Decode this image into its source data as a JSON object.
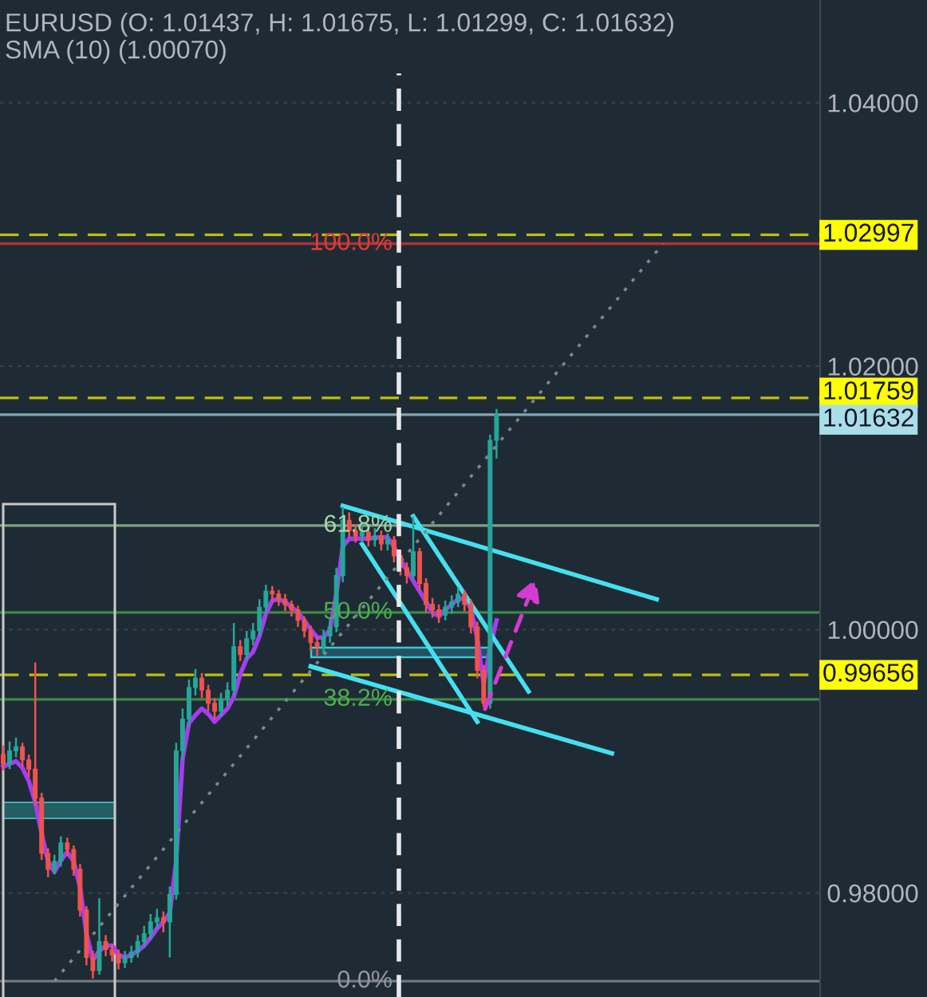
{
  "chart_data": {
    "type": "candlestick",
    "title": "EURUSD (O: 1.01437, H: 1.01675, L: 1.01299, C: 1.01632)",
    "subtitle": "SMA (10) (1.00070)",
    "categories": [
      null,
      null,
      null,
      null,
      null,
      null,
      null,
      null,
      null,
      null,
      null,
      null,
      null,
      null,
      null,
      null,
      null,
      null,
      null,
      null,
      null,
      null,
      null,
      null,
      null,
      null,
      null,
      null,
      null,
      null,
      null,
      null,
      null,
      null,
      null,
      null,
      null,
      null,
      null,
      null,
      null,
      null,
      null,
      null,
      null,
      null,
      null,
      null,
      null,
      null,
      null,
      null,
      null,
      null,
      null,
      null,
      null,
      null,
      null,
      null,
      null,
      null,
      null,
      null,
      null,
      null,
      null,
      null,
      null,
      null,
      null,
      null,
      null,
      null,
      null,
      null,
      null,
      null,
      null,
      null,
      null,
      null,
      null,
      null,
      null,
      null,
      null,
      null,
      null,
      null,
      null,
      null,
      null,
      null,
      null,
      null,
      null,
      null,
      null,
      null,
      null,
      null,
      null,
      null,
      null,
      null,
      null,
      null,
      null,
      null,
      null,
      null,
      null,
      null,
      null,
      null,
      null,
      null,
      null,
      null,
      null,
      null,
      null,
      null,
      null,
      null,
      null,
      null
    ],
    "ohlc": [
      [
        0.9905,
        0.9912,
        0.9893,
        0.9898
      ],
      [
        0.9898,
        0.9915,
        0.9894,
        0.9908
      ],
      [
        0.9908,
        0.9918,
        0.9903,
        0.9911
      ],
      [
        0.9911,
        0.9914,
        0.9896,
        0.9901
      ],
      [
        0.9901,
        0.9905,
        0.9888,
        0.9894
      ],
      [
        0.9894,
        0.9975,
        0.9866,
        0.9872
      ],
      [
        0.9872,
        0.9876,
        0.9825,
        0.983
      ],
      [
        0.983,
        0.9834,
        0.9812,
        0.9818
      ],
      [
        0.9818,
        0.9829,
        0.9814,
        0.9824
      ],
      [
        0.9824,
        0.9843,
        0.982,
        0.9838
      ],
      [
        0.9838,
        0.9842,
        0.9828,
        0.9833
      ],
      [
        0.9833,
        0.9836,
        0.9813,
        0.9818
      ],
      [
        0.9818,
        0.9822,
        0.9782,
        0.9787
      ],
      [
        0.9787,
        0.979,
        0.9745,
        0.9751
      ],
      [
        0.9751,
        0.9756,
        0.9735,
        0.9741
      ],
      [
        0.9741,
        0.9796,
        0.9738,
        0.9763
      ],
      [
        0.9763,
        0.9768,
        0.9752,
        0.9757
      ],
      [
        0.9757,
        0.9761,
        0.9748,
        0.9753
      ],
      [
        0.9753,
        0.9757,
        0.9742,
        0.9747
      ],
      [
        0.9747,
        0.9756,
        0.9743,
        0.9751
      ],
      [
        0.9751,
        0.976,
        0.9747,
        0.9755
      ],
      [
        0.9755,
        0.9768,
        0.9751,
        0.9763
      ],
      [
        0.9763,
        0.9775,
        0.9759,
        0.9769
      ],
      [
        0.9769,
        0.9784,
        0.9765,
        0.9778
      ],
      [
        0.9778,
        0.9788,
        0.9773,
        0.9781
      ],
      [
        0.9781,
        0.9786,
        0.977,
        0.9778
      ],
      [
        0.9778,
        0.9805,
        0.9751,
        0.9799
      ],
      [
        0.9799,
        0.9914,
        0.9795,
        0.9908
      ],
      [
        0.9908,
        0.994,
        0.9901,
        0.9932
      ],
      [
        0.9932,
        0.9962,
        0.9926,
        0.9956
      ],
      [
        0.9956,
        0.997,
        0.995,
        0.9963
      ],
      [
        0.9963,
        0.9967,
        0.9948,
        0.9954
      ],
      [
        0.9954,
        0.9958,
        0.9938,
        0.9944
      ],
      [
        0.9944,
        0.9948,
        0.9932,
        0.9938
      ],
      [
        0.9938,
        0.9952,
        0.9934,
        0.9947
      ],
      [
        0.9947,
        0.996,
        0.9942,
        0.9954
      ],
      [
        0.9954,
        1.0005,
        0.995,
        0.9987
      ],
      [
        0.9987,
        0.9992,
        0.9976,
        0.9981
      ],
      [
        0.9981,
        0.9999,
        0.9977,
        0.9993
      ],
      [
        0.9993,
        1.0005,
        0.9988,
        0.9999
      ],
      [
        0.9999,
        1.0023,
        0.9995,
        1.0017
      ],
      [
        1.0017,
        1.0034,
        1.0012,
        1.0029
      ],
      [
        1.0029,
        1.0033,
        1.0021,
        1.0027
      ],
      [
        1.0027,
        1.003,
        1.0018,
        1.0023
      ],
      [
        1.0023,
        1.0027,
        1.0014,
        1.0019
      ],
      [
        1.0019,
        1.0022,
        1.001,
        1.0015
      ],
      [
        1.0015,
        1.0018,
        1.0002,
        1.0007
      ],
      [
        1.0007,
        1.001,
        0.9994,
        0.9999
      ],
      [
        0.9999,
        1.0003,
        0.9984,
        0.999
      ],
      [
        0.999,
        0.9994,
        0.998,
        0.9987
      ],
      [
        0.9987,
        1.0,
        0.9982,
        0.9995
      ],
      [
        0.9995,
        1.0008,
        0.999,
        1.0002
      ],
      [
        1.0002,
        1.0047,
        0.9998,
        1.0041
      ],
      [
        1.0041,
        1.0093,
        1.0036,
        1.0083
      ],
      [
        1.0083,
        1.0089,
        1.007,
        1.0075
      ],
      [
        1.0075,
        1.008,
        1.0066,
        1.0071
      ],
      [
        1.0071,
        1.008,
        1.0066,
        1.0074
      ],
      [
        1.0074,
        1.0078,
        1.0063,
        1.0068
      ],
      [
        1.0068,
        1.0077,
        1.0063,
        1.0071
      ],
      [
        1.0071,
        1.0075,
        1.006,
        1.0065
      ],
      [
        1.0065,
        1.0073,
        1.006,
        1.0068
      ],
      [
        1.0068,
        1.0071,
        1.0051,
        1.0056
      ],
      [
        1.0056,
        1.006,
        1.0041,
        1.0047
      ],
      [
        1.0047,
        1.0051,
        1.0035,
        1.0041
      ],
      [
        1.0041,
        1.0086,
        1.0038,
        1.0059
      ],
      [
        1.0059,
        1.0062,
        1.003,
        1.0035
      ],
      [
        1.0035,
        1.0039,
        1.0013,
        1.0019
      ],
      [
        1.0019,
        1.0024,
        1.0009,
        1.0015
      ],
      [
        1.0015,
        1.0019,
        1.0005,
        1.0011
      ],
      [
        1.0011,
        1.0022,
        1.0007,
        1.0017
      ],
      [
        1.0017,
        1.0026,
        1.0012,
        1.0021
      ],
      [
        1.0021,
        1.0032,
        1.0017,
        1.0027
      ],
      [
        1.0027,
        1.003,
        1.0014,
        1.0019
      ],
      [
        1.0019,
        1.0023,
        0.9997,
        1.0002
      ],
      [
        1.0002,
        1.0006,
        0.9963,
        0.9969
      ],
      [
        0.9969,
        0.9973,
        0.9941,
        0.9944
      ],
      [
        0.9944,
        1.0148,
        0.994,
        1.01437
      ],
      [
        1.01437,
        1.01675,
        1.01299,
        1.01632
      ],
      null,
      null,
      null,
      null,
      null,
      null,
      null,
      null,
      null,
      null,
      null,
      null,
      null,
      null,
      null,
      null,
      null,
      null,
      null,
      null,
      null,
      null,
      null,
      null,
      null,
      null,
      null,
      null,
      null,
      null,
      null,
      null,
      null,
      null,
      null,
      null,
      null,
      null,
      null,
      null,
      null,
      null,
      null,
      null,
      null,
      null,
      null,
      null,
      null,
      null
    ],
    "series": [
      {
        "type": "line",
        "color": "#a63cf0",
        "values": [
          0.9896,
          0.9898,
          0.99,
          0.9895,
          0.9885,
          0.9869,
          0.9845,
          0.9824,
          0.9816,
          0.9825,
          0.9831,
          0.9824,
          0.9804,
          0.9769,
          0.9749,
          0.9756,
          0.976,
          0.976,
          0.9753,
          0.9751,
          0.9753,
          0.9756,
          0.976,
          0.9766,
          0.9773,
          0.9778,
          0.9785,
          0.9824,
          0.9902,
          0.9929,
          0.9935,
          0.994,
          0.9936,
          0.993,
          0.9935,
          0.994,
          0.9949,
          0.9966,
          0.9978,
          0.9983,
          0.9995,
          1.0012,
          1.0022,
          1.0023,
          1.0021,
          1.0017,
          1.0013,
          1.0007,
          1.0,
          0.9994,
          0.9994,
          1.0,
          1.0027,
          1.0063,
          1.0069,
          1.0069,
          1.0069,
          1.0069,
          1.007,
          1.007,
          1.007,
          1.0063,
          1.0053,
          1.0045,
          1.0037,
          1.0029,
          1.0021,
          1.0013,
          1.001,
          1.0015,
          1.0019,
          1.0023,
          1.0024,
          1.0016,
          0.9993,
          0.9959,
          0.9987,
          1.0007,
          null,
          null,
          null,
          null,
          null,
          null,
          null,
          null,
          null,
          null,
          null,
          null,
          null,
          null,
          null,
          null,
          null,
          null,
          null,
          null,
          null,
          null,
          null,
          null,
          null,
          null,
          null,
          null,
          null,
          null,
          null,
          null,
          null,
          null,
          null,
          null,
          null,
          null,
          null,
          null,
          null,
          null,
          null,
          null,
          null,
          null,
          null,
          null,
          null,
          null
        ]
      },
      {
        "type": "line",
        "color": "#45e0f0",
        "values": [
          null,
          null,
          null,
          null,
          null,
          null,
          null,
          null,
          null,
          null,
          null,
          null,
          null,
          null,
          null,
          null,
          null,
          null,
          null,
          null,
          null,
          null,
          null,
          null,
          null,
          null,
          null,
          null,
          null,
          null,
          null,
          null,
          null,
          null,
          null,
          null,
          null,
          null,
          null,
          null,
          null,
          null,
          null,
          null,
          null,
          null,
          null,
          null,
          null,
          null,
          null,
          null,
          null,
          1.0094,
          null,
          null,
          null,
          null,
          null,
          null,
          null,
          null,
          null,
          null,
          null,
          null,
          null,
          null,
          null,
          null,
          null,
          null,
          null,
          null,
          null,
          null,
          null,
          null,
          null,
          null,
          null,
          null,
          null,
          null,
          null,
          null,
          null,
          null,
          null,
          null,
          null,
          null,
          null,
          null,
          null,
          null,
          null,
          null,
          null,
          null,
          null,
          null,
          1.0023,
          null,
          null,
          null,
          null,
          null,
          null,
          null,
          null,
          null,
          null,
          null,
          null,
          null,
          null,
          null,
          null,
          null,
          null,
          null,
          null,
          null,
          null,
          null,
          null,
          null
        ]
      },
      {
        "type": "line",
        "color": "#45e0f0",
        "values": [
          null,
          null,
          null,
          null,
          null,
          null,
          null,
          null,
          null,
          null,
          null,
          null,
          null,
          null,
          null,
          null,
          null,
          null,
          null,
          null,
          null,
          null,
          null,
          null,
          null,
          null,
          null,
          null,
          null,
          null,
          null,
          null,
          null,
          null,
          null,
          null,
          null,
          null,
          null,
          null,
          null,
          null,
          null,
          null,
          null,
          null,
          null,
          null,
          0.9972,
          null,
          null,
          null,
          null,
          null,
          null,
          null,
          null,
          null,
          null,
          null,
          null,
          null,
          null,
          null,
          null,
          null,
          null,
          null,
          null,
          null,
          null,
          null,
          null,
          null,
          null,
          null,
          null,
          null,
          null,
          null,
          null,
          null,
          null,
          null,
          null,
          null,
          null,
          null,
          null,
          null,
          null,
          null,
          null,
          null,
          null,
          0.9906,
          null,
          null,
          null,
          null,
          null,
          null,
          null,
          null,
          null,
          null,
          null,
          null,
          null,
          null,
          null,
          null,
          null,
          null,
          null,
          null,
          null,
          null,
          null,
          null,
          null,
          null,
          null,
          null,
          null,
          null,
          null,
          null
        ]
      },
      {
        "type": "line",
        "color": "#45e0f0",
        "values": [
          null,
          null,
          null,
          null,
          null,
          null,
          null,
          null,
          null,
          null,
          null,
          null,
          null,
          null,
          null,
          null,
          null,
          null,
          null,
          null,
          null,
          null,
          null,
          null,
          null,
          null,
          null,
          null,
          null,
          null,
          null,
          null,
          null,
          null,
          null,
          null,
          null,
          null,
          null,
          null,
          null,
          null,
          null,
          null,
          null,
          null,
          null,
          null,
          null,
          null,
          null,
          null,
          null,
          null,
          null,
          null,
          1.0065,
          null,
          null,
          null,
          null,
          null,
          null,
          null,
          null,
          null,
          null,
          null,
          null,
          null,
          null,
          null,
          null,
          null,
          0.993,
          null,
          null,
          null,
          null,
          null,
          null,
          null,
          null,
          null,
          null,
          null,
          null,
          null,
          null,
          null,
          null,
          null,
          null,
          null,
          null,
          null,
          null,
          null,
          null,
          null,
          null,
          null,
          null,
          null,
          null,
          null,
          null,
          null,
          null,
          null,
          null,
          null,
          null,
          null,
          null,
          null,
          null,
          null,
          null,
          null,
          null,
          null,
          null,
          null,
          null,
          null,
          null,
          null
        ]
      },
      {
        "type": "line",
        "color": "#45e0f0",
        "values": [
          null,
          null,
          null,
          null,
          null,
          null,
          null,
          null,
          null,
          null,
          null,
          null,
          null,
          null,
          null,
          null,
          null,
          null,
          null,
          null,
          null,
          null,
          null,
          null,
          null,
          null,
          null,
          null,
          null,
          null,
          null,
          null,
          null,
          null,
          null,
          null,
          null,
          null,
          null,
          null,
          null,
          null,
          null,
          null,
          null,
          null,
          null,
          null,
          null,
          null,
          null,
          null,
          null,
          null,
          null,
          null,
          null,
          null,
          null,
          null,
          null,
          null,
          null,
          null,
          1.0086,
          null,
          null,
          null,
          null,
          null,
          null,
          null,
          null,
          null,
          null,
          null,
          null,
          null,
          null,
          null,
          null,
          null,
          0.9953,
          null,
          null,
          null,
          null,
          null,
          null,
          null,
          null,
          null,
          null,
          null,
          null,
          null,
          null,
          null,
          null,
          null,
          null,
          null,
          null,
          null,
          null,
          null,
          null,
          null,
          null,
          null,
          null,
          null,
          null,
          null,
          null,
          null,
          null,
          null,
          null,
          null,
          null,
          null,
          null,
          null,
          null,
          null,
          null,
          null
        ]
      },
      {
        "type": "line",
        "color": "#7b8792",
        "line_style": "dotted",
        "values": [
          null,
          null,
          null,
          null,
          null,
          null,
          null,
          null,
          0.9733,
          null,
          null,
          null,
          null,
          null,
          null,
          null,
          null,
          null,
          null,
          null,
          null,
          null,
          null,
          null,
          null,
          null,
          null,
          null,
          null,
          null,
          null,
          null,
          null,
          null,
          null,
          null,
          null,
          null,
          null,
          null,
          null,
          null,
          null,
          null,
          null,
          null,
          null,
          null,
          null,
          null,
          null,
          null,
          null,
          null,
          null,
          null,
          null,
          null,
          null,
          null,
          null,
          null,
          null,
          null,
          null,
          null,
          null,
          null,
          null,
          null,
          null,
          null,
          null,
          null,
          null,
          null,
          null,
          null,
          null,
          null,
          null,
          null,
          null,
          null,
          null,
          null,
          null,
          null,
          null,
          null,
          null,
          null,
          null,
          null,
          null,
          null,
          null,
          null,
          null,
          null,
          null,
          null,
          null,
          1.0293,
          null,
          null,
          null,
          null,
          null,
          null,
          null,
          null,
          null,
          null,
          null,
          null,
          null,
          null,
          null,
          null,
          null,
          null,
          null,
          null,
          null,
          null,
          null,
          null
        ]
      }
    ],
    "ylim": [
      0.9721,
      1.0478
    ],
    "yticks": [
      {
        "value": 0.98,
        "label": "0.98000"
      },
      {
        "value": 1.0,
        "label": "1.00000"
      },
      {
        "value": 1.02,
        "label": "1.02000"
      },
      {
        "value": 1.04,
        "label": "1.04000"
      }
    ],
    "tick_labels": "y",
    "grid": "y",
    "ref_lines": [
      {
        "axis": "y",
        "value": 1.0293,
        "color": "#e53935",
        "line_style": "solid"
      },
      {
        "axis": "y",
        "value": 1.0079,
        "color": "#a5d6a7",
        "line_style": "solid"
      },
      {
        "axis": "y",
        "value": 1.0013,
        "color": "#4caf50",
        "line_style": "solid"
      },
      {
        "axis": "y",
        "value": 0.9947,
        "color": "#4caf50",
        "line_style": "solid"
      },
      {
        "axis": "y",
        "value": 0.9733,
        "color": "#9598a1",
        "line_style": "solid"
      },
      {
        "axis": "y",
        "value": 1.02997,
        "label": "1.02997",
        "color": "#ffff00",
        "line_style": "dashed"
      },
      {
        "axis": "y",
        "value": 1.01759,
        "label": "1.01759",
        "color": "#ffff00",
        "line_style": "dashed"
      },
      {
        "axis": "y",
        "value": 1.01632,
        "label": "1.01632",
        "color": "#a8dde9",
        "line_style": "solid"
      },
      {
        "axis": "y",
        "value": 0.99656,
        "label": "0.99656",
        "color": "#ffff00",
        "line_style": "dashed"
      }
    ],
    "annotations": [
      {
        "text": "100.0%",
        "y": 1.0293
      },
      {
        "text": "61.8%",
        "y": 1.0079
      },
      {
        "text": "50.0%",
        "y": 1.0013
      },
      {
        "text": "38.2%",
        "y": 0.9947
      },
      {
        "text": "0.0%",
        "y": 0.9733
      }
    ]
  }
}
